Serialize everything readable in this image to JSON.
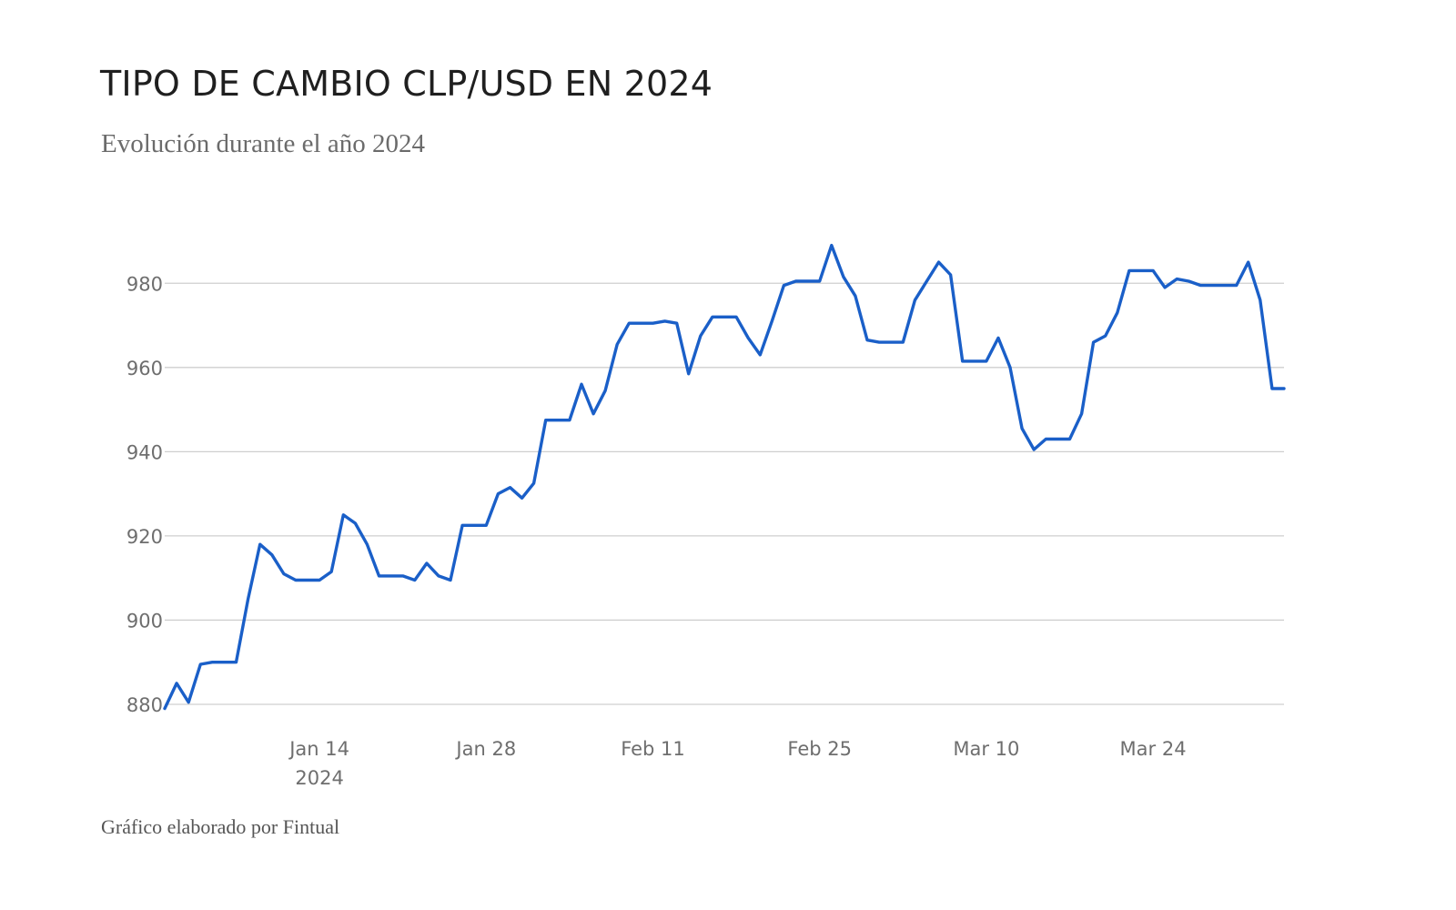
{
  "title": "TIPO DE CAMBIO CLP/USD EN 2024",
  "subtitle": "Evolución durante el año 2024",
  "footer": "Gráfico elaborado por Fintual",
  "colors": {
    "line": "#1a5fc8",
    "grid": "#cfcfcf"
  },
  "chart_data": {
    "type": "line",
    "title": "TIPO DE CAMBIO CLP/USD EN 2024",
    "subtitle": "Evolución durante el año 2024",
    "xlabel": "",
    "ylabel": "",
    "ylim": [
      880,
      990
    ],
    "xlim": [
      "2024-01-01",
      "2024-04-04"
    ],
    "grid": "horizontal",
    "legend": "none",
    "yticks": [
      880,
      900,
      920,
      940,
      960,
      980
    ],
    "xticks": [
      {
        "date": "2024-01-14",
        "label": "Jan 14",
        "sublabel": "2024"
      },
      {
        "date": "2024-01-28",
        "label": "Jan 28",
        "sublabel": ""
      },
      {
        "date": "2024-02-11",
        "label": "Feb 11",
        "sublabel": ""
      },
      {
        "date": "2024-02-25",
        "label": "Feb 25",
        "sublabel": ""
      },
      {
        "date": "2024-03-10",
        "label": "Mar 10",
        "sublabel": ""
      },
      {
        "date": "2024-03-24",
        "label": "Mar 24",
        "sublabel": ""
      }
    ],
    "series": [
      {
        "points": [
          [
            "2024-01-01",
            879
          ],
          [
            "2024-01-02",
            885
          ],
          [
            "2024-01-03",
            880.5
          ],
          [
            "2024-01-04",
            889.5
          ],
          [
            "2024-01-05",
            890
          ],
          [
            "2024-01-06",
            890
          ],
          [
            "2024-01-07",
            890
          ],
          [
            "2024-01-08",
            905
          ],
          [
            "2024-01-09",
            918
          ],
          [
            "2024-01-10",
            915.5
          ],
          [
            "2024-01-11",
            911
          ],
          [
            "2024-01-12",
            909.5
          ],
          [
            "2024-01-13",
            909.5
          ],
          [
            "2024-01-14",
            909.5
          ],
          [
            "2024-01-15",
            911.5
          ],
          [
            "2024-01-16",
            925
          ],
          [
            "2024-01-17",
            923
          ],
          [
            "2024-01-18",
            918
          ],
          [
            "2024-01-19",
            910.5
          ],
          [
            "2024-01-20",
            910.5
          ],
          [
            "2024-01-21",
            910.5
          ],
          [
            "2024-01-22",
            909.5
          ],
          [
            "2024-01-23",
            913.5
          ],
          [
            "2024-01-24",
            910.5
          ],
          [
            "2024-01-25",
            909.5
          ],
          [
            "2024-01-26",
            922.5
          ],
          [
            "2024-01-27",
            922.5
          ],
          [
            "2024-01-28",
            922.5
          ],
          [
            "2024-01-29",
            930
          ],
          [
            "2024-01-30",
            931.5
          ],
          [
            "2024-01-31",
            929
          ],
          [
            "2024-02-01",
            932.5
          ],
          [
            "2024-02-02",
            947.5
          ],
          [
            "2024-02-03",
            947.5
          ],
          [
            "2024-02-04",
            947.5
          ],
          [
            "2024-02-05",
            956
          ],
          [
            "2024-02-06",
            949
          ],
          [
            "2024-02-07",
            954.5
          ],
          [
            "2024-02-08",
            965.5
          ],
          [
            "2024-02-09",
            970.5
          ],
          [
            "2024-02-10",
            970.5
          ],
          [
            "2024-02-11",
            970.5
          ],
          [
            "2024-02-12",
            971
          ],
          [
            "2024-02-13",
            970.5
          ],
          [
            "2024-02-14",
            958.5
          ],
          [
            "2024-02-15",
            967.5
          ],
          [
            "2024-02-16",
            972
          ],
          [
            "2024-02-17",
            972
          ],
          [
            "2024-02-18",
            972
          ],
          [
            "2024-02-19",
            967
          ],
          [
            "2024-02-20",
            963
          ],
          [
            "2024-02-21",
            971
          ],
          [
            "2024-02-22",
            979.5
          ],
          [
            "2024-02-23",
            980.5
          ],
          [
            "2024-02-24",
            980.5
          ],
          [
            "2024-02-25",
            980.5
          ],
          [
            "2024-02-26",
            989
          ],
          [
            "2024-02-27",
            981.5
          ],
          [
            "2024-02-28",
            977
          ],
          [
            "2024-02-29",
            966.5
          ],
          [
            "2024-03-01",
            966
          ],
          [
            "2024-03-02",
            966
          ],
          [
            "2024-03-03",
            966
          ],
          [
            "2024-03-04",
            976
          ],
          [
            "2024-03-05",
            980.5
          ],
          [
            "2024-03-06",
            985
          ],
          [
            "2024-03-07",
            982
          ],
          [
            "2024-03-08",
            961.5
          ],
          [
            "2024-03-09",
            961.5
          ],
          [
            "2024-03-10",
            961.5
          ],
          [
            "2024-03-11",
            967
          ],
          [
            "2024-03-12",
            960
          ],
          [
            "2024-03-13",
            945.5
          ],
          [
            "2024-03-14",
            940.5
          ],
          [
            "2024-03-15",
            943
          ],
          [
            "2024-03-16",
            943
          ],
          [
            "2024-03-17",
            943
          ],
          [
            "2024-03-18",
            949
          ],
          [
            "2024-03-19",
            966
          ],
          [
            "2024-03-20",
            967.5
          ],
          [
            "2024-03-21",
            973
          ],
          [
            "2024-03-22",
            983
          ],
          [
            "2024-03-23",
            983
          ],
          [
            "2024-03-24",
            983
          ],
          [
            "2024-03-25",
            979
          ],
          [
            "2024-03-26",
            981
          ],
          [
            "2024-03-27",
            980.5
          ],
          [
            "2024-03-28",
            979.5
          ],
          [
            "2024-03-29",
            979.5
          ],
          [
            "2024-03-30",
            979.5
          ],
          [
            "2024-03-31",
            979.5
          ],
          [
            "2024-04-01",
            985
          ],
          [
            "2024-04-02",
            976
          ],
          [
            "2024-04-03",
            955
          ],
          [
            "2024-04-04",
            955
          ]
        ]
      }
    ]
  }
}
